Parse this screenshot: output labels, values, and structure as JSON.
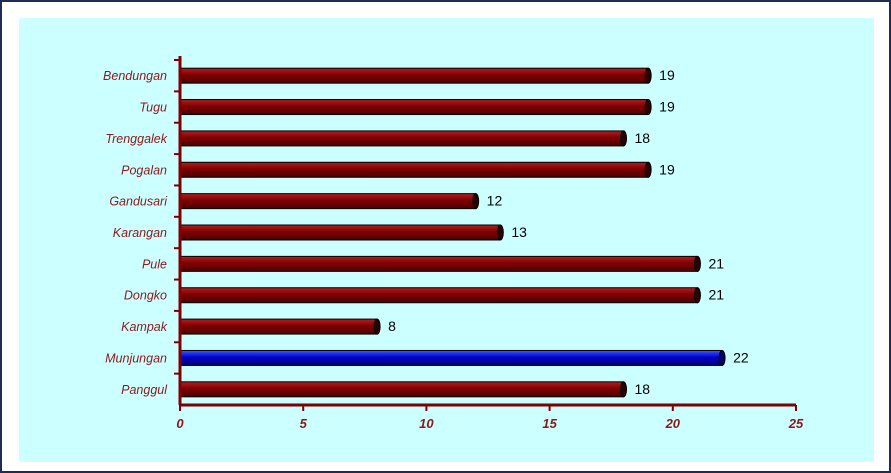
{
  "chart_data": {
    "type": "bar",
    "orientation": "horizontal",
    "categories": [
      "Bendungan",
      "Tugu",
      "Trenggalek",
      "Pogalan",
      "Gandusari",
      "Karangan",
      "Pule",
      "Dongko",
      "Kampak",
      "Munjungan",
      "Panggul"
    ],
    "values": [
      19,
      19,
      18,
      19,
      12,
      13,
      21,
      21,
      8,
      22,
      18
    ],
    "highlight": "Munjungan",
    "xlim": [
      0,
      25
    ],
    "xticks": [
      "0",
      "5",
      "10",
      "15",
      "20",
      "25"
    ],
    "title": "",
    "xlabel": "",
    "ylabel": "",
    "grid": false,
    "colors": {
      "bar": "#800000",
      "bar_highlight": "#0000cc",
      "axis": "#800000",
      "background": "#ccffff",
      "label": "#8b1a1a"
    }
  }
}
